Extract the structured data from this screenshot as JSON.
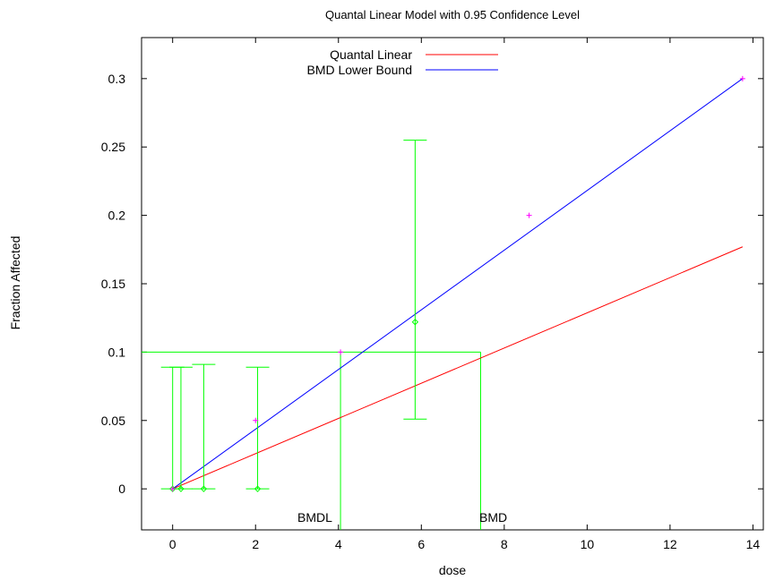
{
  "chart_data": {
    "type": "scatter",
    "title": "Quantal Linear Model with 0.95 Confidence Level",
    "xlabel": "dose",
    "ylabel": "Fraction Affected",
    "xlim": [
      -0.75,
      14.25
    ],
    "ylim": [
      -0.03,
      0.33
    ],
    "xticks": [
      0,
      2,
      4,
      6,
      8,
      10,
      12,
      14
    ],
    "yticks": [
      0,
      0.05,
      0.1,
      0.15,
      0.2,
      0.25,
      0.3
    ],
    "xtick_labels": [
      "0",
      "2",
      "4",
      "6",
      "8",
      "10",
      "12",
      "14"
    ],
    "ytick_labels": [
      "0",
      "0.05",
      "0.1",
      "0.15",
      "0.2",
      "0.25",
      "0.3"
    ],
    "legend_position": "top-center",
    "series": [
      {
        "name": "Quantal Linear",
        "kind": "line",
        "color": "#ff0000",
        "x": [
          0,
          13.75
        ],
        "y": [
          0,
          0.177
        ]
      },
      {
        "name": "BMD Lower Bound",
        "kind": "line",
        "color": "#0000ff",
        "x": [
          0,
          13.75
        ],
        "y": [
          0,
          0.3
        ]
      }
    ],
    "lower_bound_markers": {
      "color": "#ff00ff",
      "x": [
        0,
        2,
        4.05,
        8.6,
        13.75
      ],
      "y": [
        0,
        0.05,
        0.1,
        0.2,
        0.3
      ]
    },
    "observed": {
      "color": "#00ff00",
      "points": [
        {
          "x": 0,
          "y": 0,
          "lower": 0,
          "upper": 0.089
        },
        {
          "x": 0.2,
          "y": 0,
          "lower": 0,
          "upper": 0.089
        },
        {
          "x": 0.75,
          "y": 0,
          "lower": 0,
          "upper": 0.091
        },
        {
          "x": 2.05,
          "y": 0,
          "lower": 0,
          "upper": 0.089
        },
        {
          "x": 5.85,
          "y": 0.122,
          "lower": 0.051,
          "upper": 0.255
        }
      ]
    },
    "bmr_level": 0.1,
    "bmd": 7.43,
    "bmdl": 4.05,
    "bmd_label": "BMD",
    "bmdl_label": "BMDL"
  }
}
